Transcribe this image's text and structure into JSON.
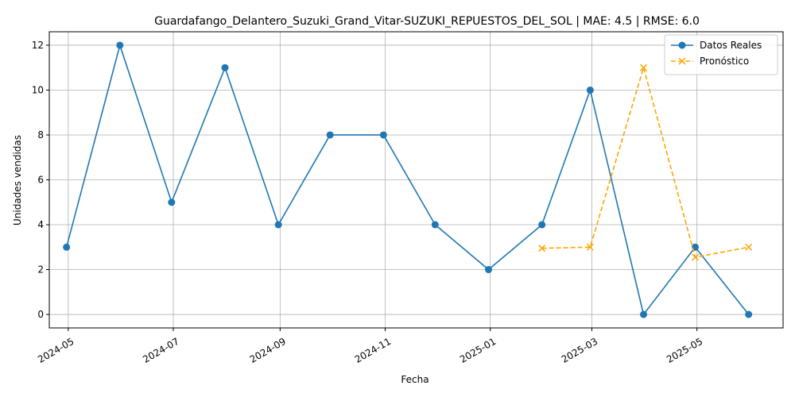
{
  "chart_data": {
    "type": "line",
    "title": "Guardafango_Delantero_Suzuki_Grand_Vitar-SUZUKI_REPUESTOS_DEL_SOL | MAE: 4.5 | RMSE: 6.0",
    "xlabel": "Fecha",
    "ylabel": "Unidades vendidas",
    "xlim": [
      "2024-04-20",
      "2025-06-20"
    ],
    "ylim": [
      -0.6,
      12.6
    ],
    "x_ticks": [
      "2024-05",
      "2024-07",
      "2024-09",
      "2024-11",
      "2025-01",
      "2025-03",
      "2025-05"
    ],
    "x_tick_dates": [
      "2024-05-01",
      "2024-07-01",
      "2024-09-01",
      "2024-11-01",
      "2025-01-01",
      "2025-03-01",
      "2025-05-01"
    ],
    "y_ticks": [
      0,
      2,
      4,
      6,
      8,
      10,
      12
    ],
    "grid": true,
    "legend_position": "top-right",
    "series": [
      {
        "name": "Datos Reales",
        "color": "#1f77b4",
        "style": "solid",
        "marker": "circle",
        "x": [
          "2024-04-30",
          "2024-05-31",
          "2024-06-30",
          "2024-07-31",
          "2024-08-31",
          "2024-09-30",
          "2024-10-31",
          "2024-11-30",
          "2024-12-31",
          "2025-01-31",
          "2025-02-28",
          "2025-03-31",
          "2025-04-30",
          "2025-05-31"
        ],
        "values": [
          3,
          12,
          5,
          11,
          4,
          8,
          8,
          4,
          2,
          4,
          10,
          0,
          3,
          0
        ]
      },
      {
        "name": "Pronóstico",
        "color": "#ffa500",
        "style": "dashed",
        "marker": "x",
        "x": [
          "2025-01-31",
          "2025-02-28",
          "2025-03-31",
          "2025-04-30",
          "2025-05-31"
        ],
        "values": [
          2.95,
          3.0,
          11.0,
          2.55,
          3.0
        ]
      }
    ]
  }
}
